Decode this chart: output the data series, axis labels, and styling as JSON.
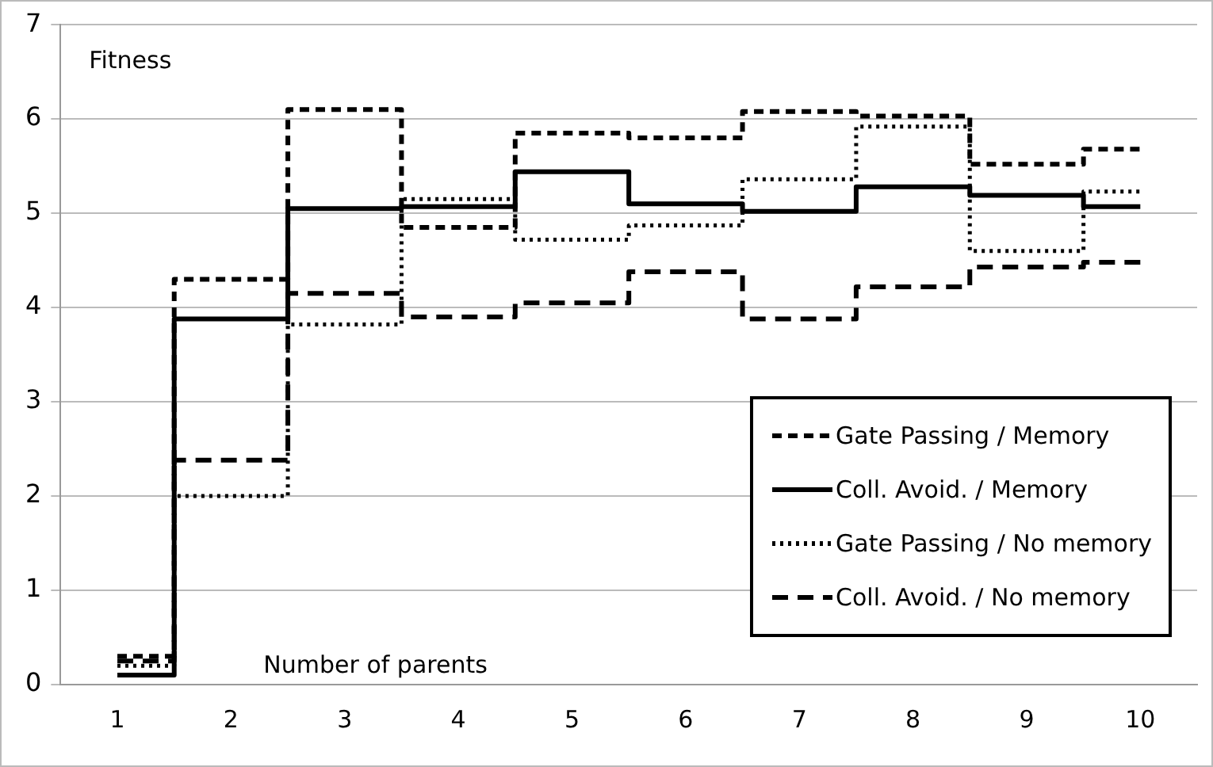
{
  "chart_data": {
    "type": "step",
    "xlabel": "Number of parents",
    "ylabel": "Fitness",
    "categories": [
      "1",
      "2",
      "3",
      "4",
      "5",
      "6",
      "7",
      "8",
      "9",
      "10"
    ],
    "series": [
      {
        "name": "Gate Passing / Memory",
        "color": "#000000",
        "line_style": "dashed",
        "values": [
          0.3,
          4.3,
          6.1,
          4.85,
          5.85,
          5.8,
          6.08,
          6.03,
          5.52,
          5.68
        ]
      },
      {
        "name": "Coll. Avoid. / Memory",
        "color": "#000000",
        "line_style": "solid",
        "values": [
          0.1,
          3.88,
          5.05,
          5.07,
          5.44,
          5.1,
          5.02,
          5.28,
          5.19,
          5.07
        ]
      },
      {
        "name": "Gate Passing / No memory",
        "color": "#000000",
        "line_style": "dotted",
        "values": [
          0.2,
          2.0,
          3.82,
          5.15,
          4.72,
          4.87,
          5.36,
          5.92,
          4.6,
          5.23
        ]
      },
      {
        "name": "Coll. Avoid. / No memory",
        "color": "#000000",
        "line_style": "dashed",
        "values": [
          0.25,
          2.38,
          4.15,
          3.9,
          4.05,
          4.38,
          3.88,
          4.22,
          4.43,
          4.48
        ]
      }
    ],
    "ylim": [
      0,
      7
    ],
    "yticks": [
      0,
      1,
      2,
      3,
      4,
      5,
      6,
      7
    ],
    "grid": "y",
    "legend": "bottom right",
    "marker": "none"
  }
}
